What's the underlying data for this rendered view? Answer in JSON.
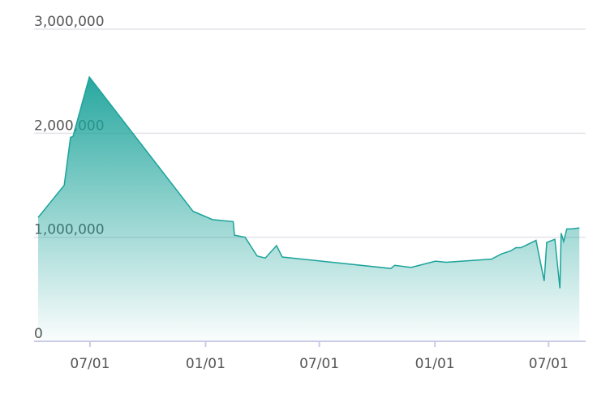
{
  "chart_data": {
    "type": "area",
    "x": [
      6.5,
      48,
      58,
      62,
      88,
      253,
      284,
      317,
      319,
      336,
      355,
      368,
      386,
      395,
      568,
      574,
      600,
      639,
      656,
      728,
      744,
      759,
      767,
      775,
      799,
      812,
      816,
      829,
      837,
      839,
      843,
      848,
      855,
      868
    ],
    "series": [
      {
        "color": "#1ba39a",
        "values": [
          1190000,
          1500000,
          1960000,
          1970000,
          2540000,
          1250000,
          1170000,
          1150000,
          1020000,
          1000000,
          820000,
          800000,
          920000,
          810000,
          700000,
          730000,
          710000,
          770000,
          760000,
          790000,
          840000,
          870000,
          900000,
          900000,
          970000,
          580000,
          950000,
          980000,
          510000,
          1040000,
          960000,
          1080000,
          1080000,
          1090000
        ]
      }
    ],
    "xlim": [
      0,
      878
    ],
    "xticks": [
      {
        "value": 89,
        "label": "07/01"
      },
      {
        "value": 273,
        "label": "01/01"
      },
      {
        "value": 454,
        "label": "07/01"
      },
      {
        "value": 638,
        "label": "01/01"
      },
      {
        "value": 819,
        "label": "07/01"
      }
    ],
    "ylim": [
      0,
      3000000
    ],
    "yticks": [
      0,
      {
        "value": 1000000,
        "label": "1,000,000"
      },
      {
        "value": 2000000,
        "label": "2,000,000"
      },
      {
        "value": 3000000,
        "label": "3,000,000"
      }
    ],
    "grid": true
  }
}
